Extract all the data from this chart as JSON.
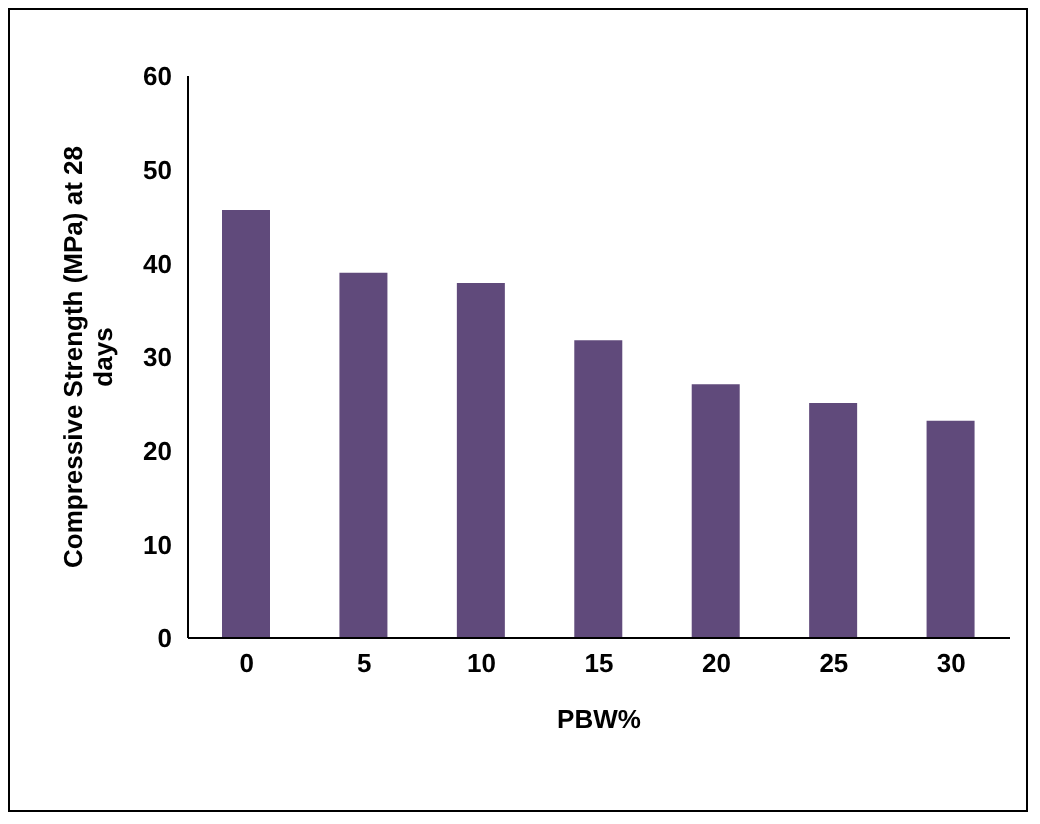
{
  "chart_data": {
    "type": "bar",
    "xlabel": "PBW%",
    "ylabel": "Compressive Strength (MPa) at 28 days",
    "categories": [
      "0",
      "5",
      "10",
      "15",
      "20",
      "25",
      "30"
    ],
    "values": [
      45.7,
      39.0,
      37.9,
      31.8,
      27.1,
      25.1,
      23.2
    ],
    "color": "#604a7b",
    "ylim": [
      0,
      60
    ],
    "yticks": [
      0,
      10,
      20,
      30,
      40,
      50,
      60
    ],
    "grid": false
  }
}
